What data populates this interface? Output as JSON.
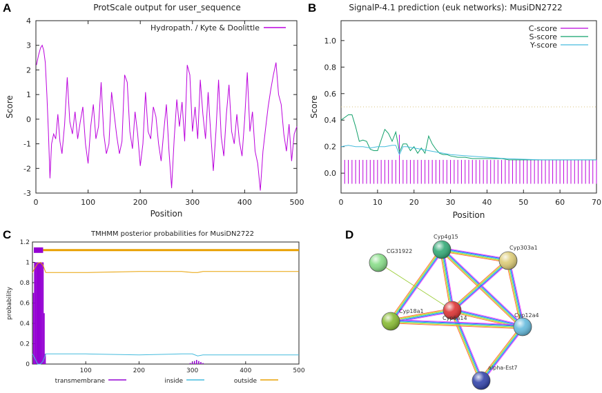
{
  "panels": {
    "a": "A",
    "b": "B",
    "c": "C",
    "d": "D"
  },
  "colors": {
    "magenta": "#bb00dd",
    "green": "#11a06a",
    "cyan": "#44bbdd",
    "orange": "#e8a000",
    "purple": "#9400d3"
  },
  "chart_data": [
    {
      "id": "A",
      "type": "line",
      "title": "ProtScale output for user_sequence",
      "xlabel": "Position",
      "ylabel": "Score",
      "xlim": [
        0,
        500
      ],
      "ylim": [
        -3,
        4
      ],
      "xticks": [
        0,
        100,
        200,
        300,
        400,
        500
      ],
      "yticks": [
        4,
        3,
        2,
        1,
        0,
        -1,
        -2,
        -3
      ],
      "series": [
        {
          "name": "Hydropath. / Kyte & Doolittle",
          "color": "#bb00dd",
          "x": [
            1,
            5,
            9,
            12,
            15,
            18,
            21,
            24,
            27,
            30,
            34,
            38,
            42,
            46,
            50,
            55,
            60,
            65,
            70,
            75,
            80,
            85,
            90,
            95,
            100,
            105,
            110,
            115,
            120,
            125,
            130,
            135,
            140,
            145,
            150,
            155,
            160,
            165,
            170,
            175,
            180,
            185,
            190,
            195,
            200,
            205,
            210,
            215,
            220,
            225,
            230,
            235,
            240,
            245,
            250,
            255,
            260,
            265,
            270,
            275,
            280,
            285,
            290,
            295,
            300,
            305,
            310,
            315,
            320,
            325,
            330,
            335,
            340,
            345,
            350,
            355,
            360,
            365,
            370,
            375,
            380,
            385,
            390,
            395,
            400,
            405,
            410,
            415,
            420,
            425,
            430,
            435,
            440,
            445,
            450,
            455,
            460,
            465,
            470,
            475,
            480,
            485,
            490,
            495,
            500
          ],
          "values": [
            2.2,
            2.6,
            2.9,
            3.0,
            2.8,
            2.3,
            1.0,
            -0.5,
            -2.4,
            -1.0,
            -0.6,
            -0.8,
            0.2,
            -0.9,
            -1.4,
            -0.2,
            1.7,
            -0.1,
            -0.6,
            0.3,
            -0.8,
            -0.1,
            0.5,
            -1.0,
            -1.8,
            -0.3,
            0.6,
            -0.8,
            -0.3,
            1.5,
            -0.6,
            -1.4,
            -1.0,
            1.1,
            0.2,
            -0.7,
            -1.4,
            -0.9,
            1.8,
            1.5,
            -0.5,
            -1.2,
            0.3,
            -0.6,
            -1.9,
            -1.0,
            1.1,
            -0.5,
            -0.8,
            0.5,
            0.1,
            -1.0,
            -1.7,
            -0.5,
            0.6,
            -1.3,
            -2.8,
            -0.8,
            0.8,
            -0.3,
            0.7,
            -0.9,
            2.2,
            1.8,
            -0.5,
            0.5,
            -0.8,
            1.6,
            0.2,
            -0.8,
            1.1,
            -0.6,
            -2.1,
            -0.5,
            1.6,
            -0.7,
            -1.5,
            0.2,
            1.4,
            -0.5,
            -1.0,
            0.2,
            -0.9,
            -1.5,
            0.0,
            1.9,
            -0.5,
            0.3,
            -1.3,
            -1.8,
            -2.9,
            -1.3,
            -0.4,
            0.5,
            1.2,
            1.8,
            2.3,
            1.0,
            0.6,
            -0.6,
            -1.3,
            -0.2,
            -1.7,
            -0.6,
            -0.3
          ]
        }
      ]
    },
    {
      "id": "B",
      "type": "line",
      "title": "SignalP-4.1 prediction (euk networks): MusiDN2722",
      "xlabel": "Position",
      "ylabel": "Score",
      "xlim": [
        0,
        70
      ],
      "ylim": [
        -0.15,
        1.15
      ],
      "xticks": [
        0,
        10,
        20,
        30,
        40,
        50,
        60,
        70
      ],
      "yticks": [
        0.0,
        0.2,
        0.4,
        0.6,
        0.8,
        1.0
      ],
      "threshold": 0.5,
      "series": [
        {
          "name": "C-score",
          "color": "#bb00dd",
          "style": "impulse",
          "x": [
            1,
            2,
            3,
            4,
            5,
            6,
            7,
            8,
            9,
            10,
            11,
            12,
            13,
            14,
            15,
            16,
            17,
            18,
            19,
            20,
            21,
            22,
            23,
            24,
            25,
            26,
            27,
            28,
            29,
            30,
            31,
            32,
            33,
            34,
            35,
            36,
            37,
            38,
            39,
            40,
            41,
            42,
            43,
            44,
            45,
            46,
            47,
            48,
            49,
            50,
            51,
            52,
            53,
            54,
            55,
            56,
            57,
            58,
            59,
            60,
            61,
            62,
            63,
            64,
            65,
            66,
            67,
            68,
            69,
            70
          ],
          "values": [
            0.1,
            0.1,
            0.1,
            0.1,
            0.1,
            0.1,
            0.1,
            0.1,
            0.1,
            0.1,
            0.1,
            0.1,
            0.1,
            0.1,
            0.1,
            0.29,
            0.1,
            0.1,
            0.1,
            0.1,
            0.1,
            0.1,
            0.1,
            0.1,
            0.1,
            0.1,
            0.1,
            0.1,
            0.1,
            0.1,
            0.1,
            0.1,
            0.1,
            0.1,
            0.1,
            0.1,
            0.1,
            0.1,
            0.1,
            0.1,
            0.1,
            0.1,
            0.1,
            0.1,
            0.1,
            0.1,
            0.1,
            0.1,
            0.1,
            0.1,
            0.1,
            0.1,
            0.1,
            0.1,
            0.1,
            0.1,
            0.1,
            0.1,
            0.1,
            0.1,
            0.1,
            0.1,
            0.1,
            0.1,
            0.1,
            0.1,
            0.1,
            0.1,
            0.1,
            0.1
          ]
        },
        {
          "name": "S-score",
          "color": "#11a06a",
          "style": "line",
          "x": [
            0,
            1,
            2,
            3,
            4,
            5,
            6,
            7,
            8,
            9,
            10,
            11,
            12,
            13,
            14,
            15,
            16,
            17,
            18,
            19,
            20,
            21,
            22,
            23,
            24,
            25,
            26,
            27,
            28,
            29,
            30,
            32,
            34,
            36,
            38,
            40,
            42,
            44,
            46,
            48,
            50,
            55,
            60,
            65,
            70
          ],
          "values": [
            0.4,
            0.42,
            0.44,
            0.44,
            0.35,
            0.24,
            0.25,
            0.24,
            0.18,
            0.17,
            0.17,
            0.25,
            0.33,
            0.3,
            0.24,
            0.31,
            0.16,
            0.22,
            0.22,
            0.17,
            0.2,
            0.15,
            0.19,
            0.15,
            0.28,
            0.22,
            0.18,
            0.15,
            0.14,
            0.14,
            0.13,
            0.12,
            0.12,
            0.11,
            0.11,
            0.11,
            0.11,
            0.11,
            0.1,
            0.1,
            0.1,
            0.1,
            0.1,
            0.1,
            0.1
          ]
        },
        {
          "name": "Y-score",
          "color": "#44bbdd",
          "style": "line",
          "x": [
            0,
            2,
            4,
            6,
            8,
            10,
            12,
            14,
            15,
            16,
            17,
            18,
            20,
            22,
            24,
            26,
            28,
            30,
            35,
            40,
            45,
            50,
            55,
            60,
            65,
            70
          ],
          "values": [
            0.2,
            0.21,
            0.2,
            0.2,
            0.19,
            0.2,
            0.2,
            0.21,
            0.21,
            0.14,
            0.2,
            0.2,
            0.19,
            0.18,
            0.17,
            0.16,
            0.15,
            0.14,
            0.13,
            0.12,
            0.11,
            0.105,
            0.1,
            0.1,
            0.1,
            0.1
          ]
        }
      ]
    },
    {
      "id": "C",
      "type": "line",
      "title": "TMHMM posterior probabilities for MusiDN2722",
      "xlabel": "",
      "ylabel": "probability",
      "xlim": [
        0,
        500
      ],
      "ylim": [
        0,
        1.2
      ],
      "xticks": [
        100,
        200,
        300,
        400,
        500
      ],
      "yticks": [
        0,
        0.2,
        0.4,
        0.6,
        0.8,
        1,
        1.2
      ],
      "bars": {
        "band": "transmembrane",
        "from": 0,
        "to": 20,
        "color": "#9400d3"
      },
      "series": [
        {
          "name": "transmembrane",
          "color": "#9400d3",
          "style": "impulse",
          "x": [
            2,
            4,
            6,
            8,
            10,
            12,
            14,
            16,
            18,
            20,
            22,
            24,
            296,
            300,
            304,
            308,
            312,
            316,
            320
          ],
          "values": [
            0.7,
            1.0,
            1.0,
            1.0,
            1.0,
            1.0,
            1.0,
            1.0,
            1.0,
            1.0,
            0.5,
            0.1,
            0.01,
            0.02,
            0.03,
            0.04,
            0.03,
            0.02,
            0.01
          ]
        },
        {
          "name": "inside",
          "color": "#44bbdd",
          "style": "line",
          "x": [
            0,
            5,
            10,
            15,
            20,
            25,
            100,
            200,
            280,
            300,
            310,
            320,
            360,
            420,
            500
          ],
          "values": [
            0.1,
            0.05,
            0.0,
            0.0,
            0.03,
            0.1,
            0.1,
            0.09,
            0.1,
            0.1,
            0.08,
            0.09,
            0.09,
            0.09,
            0.09
          ]
        },
        {
          "name": "outside",
          "color": "#e8a000",
          "style": "line",
          "x": [
            0,
            5,
            10,
            15,
            20,
            25,
            100,
            200,
            280,
            300,
            310,
            320,
            360,
            420,
            500
          ],
          "values": [
            0.9,
            0.95,
            0.99,
            1.0,
            0.97,
            0.9,
            0.9,
            0.91,
            0.91,
            0.9,
            0.9,
            0.91,
            0.91,
            0.91,
            0.91
          ]
        }
      ],
      "topband": {
        "color": "#e8a000",
        "value": 1.12
      }
    }
  ],
  "network": {
    "nodes": [
      {
        "id": "CG31922",
        "label": "CG31922",
        "color": "#88dd88"
      },
      {
        "id": "Cyp4g15",
        "label": "Cyp4g15",
        "color": "#33aa77"
      },
      {
        "id": "Cyp303a1",
        "label": "Cyp303a1",
        "color": "#ddcc77"
      },
      {
        "id": "Cyp6a14",
        "label": "Cyp6a14",
        "color": "#dd3333"
      },
      {
        "id": "Cyp18a1",
        "label": "Cyp18a1",
        "color": "#88bb33"
      },
      {
        "id": "Cyp12a4",
        "label": "Cyp12a4",
        "color": "#66bbdd"
      },
      {
        "id": "alpha-Est7",
        "label": "alpha-Est7",
        "color": "#3344aa"
      }
    ],
    "edges": [
      [
        "Cyp4g15",
        "Cyp303a1"
      ],
      [
        "Cyp4g15",
        "Cyp6a14"
      ],
      [
        "Cyp4g15",
        "Cyp18a1"
      ],
      [
        "Cyp4g15",
        "Cyp12a4"
      ],
      [
        "Cyp303a1",
        "Cyp6a14"
      ],
      [
        "Cyp303a1",
        "Cyp12a4"
      ],
      [
        "Cyp6a14",
        "Cyp18a1"
      ],
      [
        "Cyp6a14",
        "Cyp12a4"
      ],
      [
        "Cyp6a14",
        "alpha-Est7"
      ],
      [
        "Cyp18a1",
        "Cyp12a4"
      ],
      [
        "Cyp12a4",
        "alpha-Est7"
      ],
      [
        "CG31922",
        "Cyp6a14"
      ]
    ]
  }
}
